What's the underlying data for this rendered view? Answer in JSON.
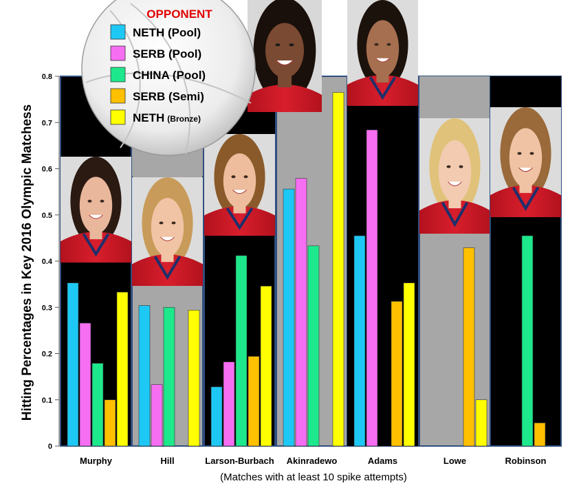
{
  "chart_data": {
    "type": "bar",
    "title": "",
    "ylabel": "Hitting Percentages in Key 2016 Olympic Matchess",
    "xlabel": "(Matches with at least 10 spike attempts)",
    "ylim": [
      0,
      0.8
    ],
    "yticks": [
      "0",
      "0.1",
      "0.2",
      "0.3",
      "0.4",
      "0.5",
      "0.6",
      "0.7",
      "0.8"
    ],
    "grid": false,
    "legend_placement": "top-left",
    "legend_title": "OPPONENT",
    "categories": [
      "Murphy",
      "Hill",
      "Larson-Burbach",
      "Akinradewo",
      "Adams",
      "Lowe",
      "Robinson"
    ],
    "series": [
      {
        "name": "NETH (Pool)",
        "color": "#1ec8f5",
        "values": [
          0.353,
          0.304,
          0.128,
          0.556,
          0.455,
          null,
          null
        ]
      },
      {
        "name": "SERB (Pool)",
        "color": "#f66ef2",
        "values": [
          0.266,
          0.133,
          0.182,
          0.579,
          0.684,
          null,
          null
        ]
      },
      {
        "name": "CHINA (Pool)",
        "color": "#1ee88c",
        "values": [
          0.179,
          0.3,
          0.412,
          0.433,
          null,
          null,
          0.455
        ]
      },
      {
        "name": "SERB (Semi)",
        "color": "#ffc000",
        "values": [
          0.1,
          null,
          0.194,
          null,
          0.313,
          0.429,
          0.05
        ]
      },
      {
        "name": "NETH",
        "name_suffix": "(Bronze)",
        "color": "#ffff00",
        "values": [
          0.333,
          0.294,
          0.346,
          0.765,
          0.353,
          0.1,
          null
        ]
      }
    ]
  }
}
